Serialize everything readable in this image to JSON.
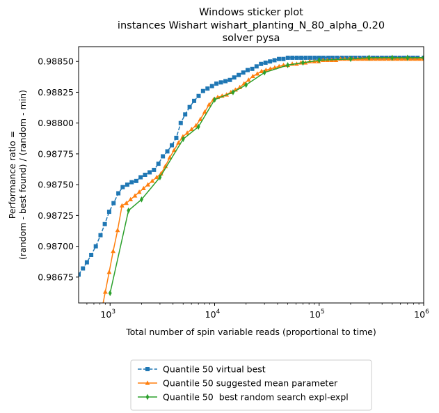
{
  "chart_data": {
    "type": "line",
    "title": [
      "Windows sticker plot",
      "instances Wishart wishart_planting_N_80_alpha_0.20",
      "solver pysa"
    ],
    "xlabel": "Total number of spin variable reads (proportional to time)",
    "ylabel": [
      "Performance ratio =",
      "(random - best found) / (random - min)"
    ],
    "xscale": "log",
    "xlim": [
      500,
      1000000
    ],
    "ylim": [
      0.98654,
      0.98862
    ],
    "xticks": [
      {
        "value": 1000,
        "base": "10",
        "exp": "3"
      },
      {
        "value": 10000,
        "base": "10",
        "exp": "4"
      },
      {
        "value": 100000,
        "base": "10",
        "exp": "5"
      },
      {
        "value": 1000000,
        "base": "10",
        "exp": "6"
      }
    ],
    "yticks": [
      {
        "value": 0.98675,
        "label": "0.98675"
      },
      {
        "value": 0.987,
        "label": "0.98700"
      },
      {
        "value": 0.98725,
        "label": "0.98725"
      },
      {
        "value": 0.9875,
        "label": "0.98750"
      },
      {
        "value": 0.98775,
        "label": "0.98775"
      },
      {
        "value": 0.988,
        "label": "0.98800"
      },
      {
        "value": 0.98825,
        "label": "0.98825"
      },
      {
        "value": 0.9885,
        "label": "0.98850"
      }
    ],
    "legend_position": "below",
    "grid": false,
    "series": [
      {
        "name": "Quantile 50 virtual best",
        "color": "#1f77b4",
        "marker": "square",
        "linestyle": "dashed",
        "points": [
          [
            500,
            0.98677
          ],
          [
            550,
            0.98682
          ],
          [
            600,
            0.98687
          ],
          [
            660,
            0.98693
          ],
          [
            730,
            0.987
          ],
          [
            810,
            0.98709
          ],
          [
            890,
            0.98718
          ],
          [
            980,
            0.98728
          ],
          [
            1080,
            0.98735
          ],
          [
            1200,
            0.98743
          ],
          [
            1320,
            0.98748
          ],
          [
            1460,
            0.9875
          ],
          [
            1610,
            0.98752
          ],
          [
            1780,
            0.98753
          ],
          [
            1960,
            0.98756
          ],
          [
            2160,
            0.98758
          ],
          [
            2390,
            0.9876
          ],
          [
            2630,
            0.98762
          ],
          [
            2900,
            0.98767
          ],
          [
            3200,
            0.98773
          ],
          [
            3530,
            0.98777
          ],
          [
            3900,
            0.98782
          ],
          [
            4300,
            0.98788
          ],
          [
            4740,
            0.988
          ],
          [
            5230,
            0.98807
          ],
          [
            5770,
            0.98813
          ],
          [
            6370,
            0.98818
          ],
          [
            7030,
            0.98822
          ],
          [
            7750,
            0.98826
          ],
          [
            8550,
            0.98828
          ],
          [
            9440,
            0.9883
          ],
          [
            10400,
            0.98832
          ],
          [
            11500,
            0.98833
          ],
          [
            12700,
            0.98834
          ],
          [
            14000,
            0.98835
          ],
          [
            15400,
            0.98837
          ],
          [
            17000,
            0.98839
          ],
          [
            18800,
            0.98841
          ],
          [
            20700,
            0.98843
          ],
          [
            22900,
            0.98844
          ],
          [
            25200,
            0.98846
          ],
          [
            27800,
            0.98848
          ],
          [
            30700,
            0.98849
          ],
          [
            33900,
            0.9885
          ],
          [
            37400,
            0.98851
          ],
          [
            41300,
            0.98852
          ],
          [
            45500,
            0.98852
          ],
          [
            50200,
            0.98853
          ],
          [
            55400,
            0.98853
          ],
          [
            61200,
            0.98853
          ],
          [
            67500,
            0.98853
          ],
          [
            74500,
            0.98853
          ],
          [
            82200,
            0.98853
          ],
          [
            90700,
            0.98853
          ],
          [
            100000,
            0.98853
          ],
          [
            110000,
            0.98853
          ],
          [
            122000,
            0.98853
          ],
          [
            134000,
            0.98853
          ],
          [
            148000,
            0.98853
          ],
          [
            164000,
            0.98853
          ],
          [
            181000,
            0.98853
          ],
          [
            200000,
            0.98853
          ],
          [
            220000,
            0.98853
          ],
          [
            243000,
            0.98853
          ],
          [
            268000,
            0.98853
          ],
          [
            296000,
            0.98853
          ],
          [
            327000,
            0.98853
          ],
          [
            360000,
            0.98853
          ],
          [
            398000,
            0.98853
          ],
          [
            439000,
            0.98853
          ],
          [
            484000,
            0.98853
          ],
          [
            534000,
            0.98853
          ],
          [
            590000,
            0.98853
          ],
          [
            651000,
            0.98853
          ],
          [
            718000,
            0.98853
          ],
          [
            792000,
            0.98853
          ],
          [
            875000,
            0.98853
          ],
          [
            1000000,
            0.98853
          ]
        ]
      },
      {
        "name": "Quantile 50 suggested mean parameter",
        "color": "#ff7f0e",
        "marker": "triangle",
        "linestyle": "solid",
        "points": [
          [
            840,
            0.9865
          ],
          [
            900,
            0.98663
          ],
          [
            980,
            0.98679
          ],
          [
            1070,
            0.98696
          ],
          [
            1180,
            0.98713
          ],
          [
            1300,
            0.98733
          ],
          [
            1430,
            0.98735
          ],
          [
            1570,
            0.98738
          ],
          [
            1730,
            0.98741
          ],
          [
            1900,
            0.98744
          ],
          [
            2090,
            0.98747
          ],
          [
            2300,
            0.9875
          ],
          [
            2530,
            0.98753
          ],
          [
            2790,
            0.98756
          ],
          [
            3070,
            0.98759
          ],
          [
            3380,
            0.98765
          ],
          [
            3720,
            0.98772
          ],
          [
            4100,
            0.98778
          ],
          [
            4510,
            0.98784
          ],
          [
            4970,
            0.98789
          ],
          [
            5470,
            0.98792
          ],
          [
            6020,
            0.98795
          ],
          [
            6630,
            0.98798
          ],
          [
            7300,
            0.98803
          ],
          [
            8040,
            0.98809
          ],
          [
            8860,
            0.98815
          ],
          [
            9750,
            0.98819
          ],
          [
            10700,
            0.98821
          ],
          [
            11800,
            0.98822
          ],
          [
            13000,
            0.98823
          ],
          [
            14300,
            0.98825
          ],
          [
            15800,
            0.98827
          ],
          [
            17400,
            0.98829
          ],
          [
            19100,
            0.98832
          ],
          [
            21100,
            0.98835
          ],
          [
            23200,
            0.98838
          ],
          [
            25600,
            0.9884
          ],
          [
            28100,
            0.98842
          ],
          [
            31000,
            0.98843
          ],
          [
            34100,
            0.98844
          ],
          [
            37600,
            0.98845
          ],
          [
            41400,
            0.98846
          ],
          [
            45600,
            0.98847
          ],
          [
            50200,
            0.98847
          ],
          [
            55300,
            0.98848
          ],
          [
            60900,
            0.98848
          ],
          [
            67000,
            0.98849
          ],
          [
            73800,
            0.98849
          ],
          [
            81300,
            0.9885
          ],
          [
            89500,
            0.9885
          ],
          [
            98600,
            0.9885
          ],
          [
            109000,
            0.98851
          ],
          [
            120000,
            0.98851
          ],
          [
            132000,
            0.98851
          ],
          [
            145000,
            0.98851
          ],
          [
            160000,
            0.98852
          ],
          [
            176000,
            0.98852
          ],
          [
            194000,
            0.98852
          ],
          [
            213000,
            0.98852
          ],
          [
            235000,
            0.98852
          ],
          [
            259000,
            0.98852
          ],
          [
            285000,
            0.98852
          ],
          [
            314000,
            0.98852
          ],
          [
            346000,
            0.98852
          ],
          [
            381000,
            0.98852
          ],
          [
            419000,
            0.98852
          ],
          [
            462000,
            0.98852
          ],
          [
            509000,
            0.98852
          ],
          [
            560000,
            0.98852
          ],
          [
            617000,
            0.98852
          ],
          [
            680000,
            0.98852
          ],
          [
            749000,
            0.98852
          ],
          [
            825000,
            0.98852
          ],
          [
            908000,
            0.98852
          ],
          [
            1000000,
            0.98852
          ]
        ]
      },
      {
        "name": "Quantile 50  best random search expl-expl",
        "color": "#2ca02c",
        "marker": "thin_diamond",
        "linestyle": "solid",
        "points": [
          [
            1000,
            0.98662
          ],
          [
            1500,
            0.98729
          ],
          [
            2000,
            0.98738
          ],
          [
            3000,
            0.98756
          ],
          [
            5000,
            0.98787
          ],
          [
            7000,
            0.98797
          ],
          [
            10000,
            0.98819
          ],
          [
            15000,
            0.98825
          ],
          [
            20000,
            0.98831
          ],
          [
            30000,
            0.98841
          ],
          [
            50000,
            0.98847
          ],
          [
            70000,
            0.98849
          ],
          [
            100000,
            0.98851
          ],
          [
            200000,
            0.98852
          ],
          [
            300000,
            0.98853
          ],
          [
            500000,
            0.98853
          ],
          [
            700000,
            0.98853
          ],
          [
            1000000,
            0.98853
          ]
        ]
      }
    ]
  }
}
